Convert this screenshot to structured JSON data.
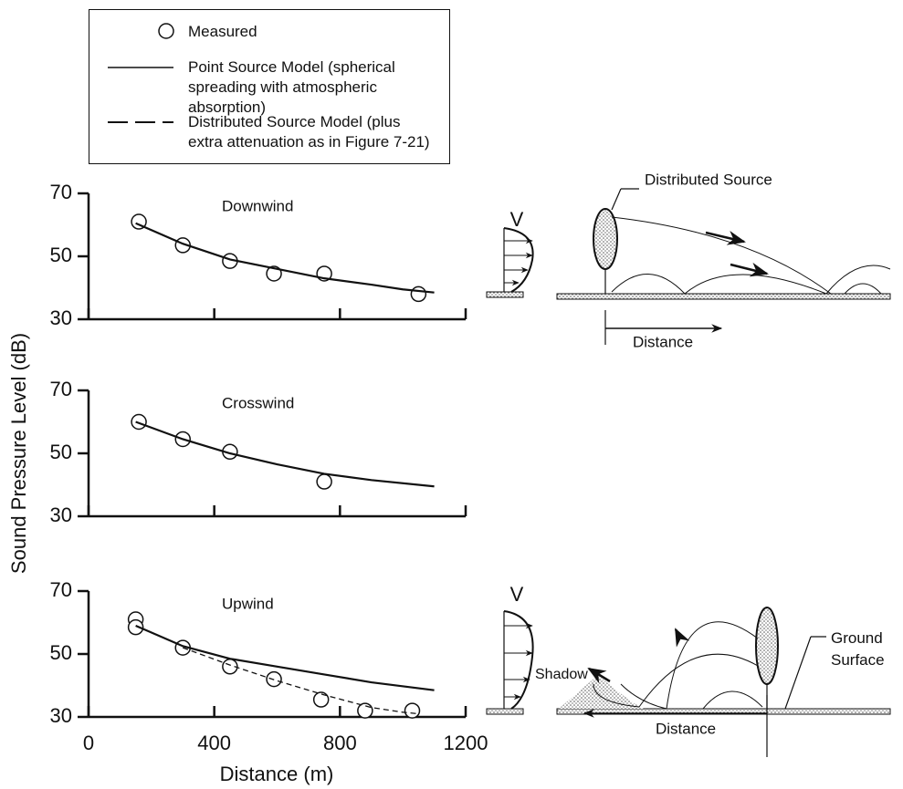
{
  "chart_data": [
    {
      "type": "line",
      "title": "Downwind",
      "xlim": [
        0,
        1200
      ],
      "xticks": [
        0,
        400,
        800,
        1200
      ],
      "xtick_labels": false,
      "ylim": [
        30,
        70
      ],
      "yticks": [
        30,
        50,
        70
      ],
      "series": [
        {
          "name": "Measured",
          "style": "markers",
          "color": "#111111",
          "x": [
            160,
            300,
            450,
            590,
            750,
            1050
          ],
          "values": [
            61,
            53.5,
            48.5,
            44.5,
            44.5,
            38
          ]
        },
        {
          "name": "Point Source Model (spherical spreading with atmospheric absorption)",
          "style": "solid",
          "color": "#111111",
          "x": [
            150,
            300,
            450,
            600,
            750,
            900,
            1000,
            1100
          ],
          "values": [
            60.5,
            54,
            49,
            46,
            43,
            41,
            39.5,
            38.5
          ]
        }
      ]
    },
    {
      "type": "line",
      "title": "Crosswind",
      "y_label": "Sound Pressure Level (dB)",
      "xlim": [
        0,
        1200
      ],
      "xticks": [
        0,
        400,
        800,
        1200
      ],
      "xtick_labels": false,
      "ylim": [
        30,
        70
      ],
      "yticks": [
        30,
        50,
        70
      ],
      "series": [
        {
          "name": "Measured",
          "style": "markers",
          "color": "#111111",
          "x": [
            160,
            300,
            450,
            750
          ],
          "values": [
            60,
            54.5,
            50.5,
            41
          ]
        },
        {
          "name": "Point Source Model (spherical spreading with atmospheric absorption)",
          "style": "solid",
          "color": "#111111",
          "x": [
            150,
            300,
            450,
            600,
            750,
            900,
            1100
          ],
          "values": [
            60,
            54.5,
            50,
            46.5,
            43.5,
            41.5,
            39.5
          ]
        }
      ]
    },
    {
      "type": "line",
      "title": "Upwind",
      "x_label": "Distance (m)",
      "xlim": [
        0,
        1200
      ],
      "xticks": [
        0,
        400,
        800,
        1200
      ],
      "xtick_labels": true,
      "ylim": [
        30,
        70
      ],
      "yticks": [
        30,
        50,
        70
      ],
      "series": [
        {
          "name": "Measured",
          "style": "markers",
          "color": "#111111",
          "x": [
            150,
            150,
            300,
            450,
            590,
            740,
            880,
            1030
          ],
          "values": [
            61,
            58.5,
            52,
            46,
            42,
            35.5,
            32,
            32
          ]
        },
        {
          "name": "Point Source Model (spherical spreading with atmospheric absorption)",
          "style": "solid",
          "color": "#111111",
          "x": [
            150,
            300,
            450,
            600,
            750,
            900,
            1100
          ],
          "values": [
            59,
            52.5,
            48.5,
            46,
            43.5,
            41,
            38.5
          ]
        },
        {
          "name": "Distributed Source Model (plus extra attenuation as in Figure 7-21)",
          "style": "dashed",
          "color": "#111111",
          "x": [
            300,
            450,
            600,
            750,
            900,
            1000,
            1050
          ],
          "values": [
            52,
            46.5,
            41.5,
            37,
            33,
            31.5,
            31
          ]
        }
      ]
    }
  ],
  "diagrams": {
    "downwind": {
      "speed_label": "V",
      "source_label": "Distributed Source",
      "distance_label": "Distance"
    },
    "upwind": {
      "speed_label": "V",
      "shadow_label": "Shadow",
      "ground_label": "Ground Surface",
      "distance_label": "Distance"
    }
  }
}
